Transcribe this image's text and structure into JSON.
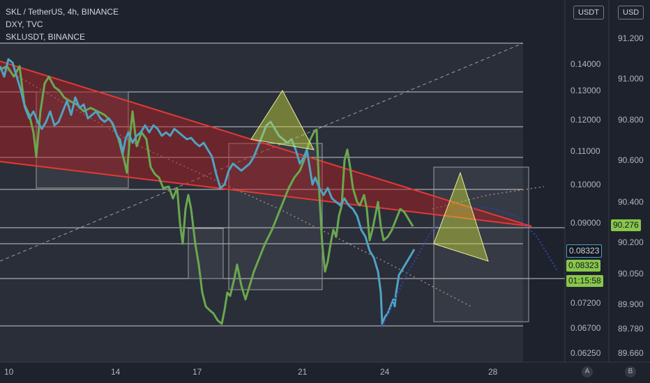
{
  "legend": {
    "line1": "SKL / TetherUS, 4h, BINANCE",
    "line2": "DXY, TVC",
    "line3": "SKLUSDT, BINANCE"
  },
  "currency_left": "USDT",
  "currency_right": "USD",
  "left_axis_ticks": [
    "0.14000",
    "0.13000",
    "0.12000",
    "0.11000",
    "0.10000",
    "0.09000",
    "0.07200",
    "0.06700",
    "0.06250"
  ],
  "right_axis_ticks": [
    "91.200",
    "91.000",
    "90.800",
    "90.600",
    "90.400",
    "90.200",
    "90.050",
    "89.900",
    "89.780",
    "89.660"
  ],
  "date_ticks": [
    "10",
    "14",
    "17",
    "21",
    "24",
    "28"
  ],
  "badges": {
    "right_price": "90.276",
    "left_price_1": "0.08323",
    "left_price_2": "0.08323",
    "countdown": "01:15:58"
  },
  "corner_buttons": {
    "auto": "A",
    "log": "B"
  },
  "colors": {
    "background": "#1e222d",
    "sklusdt_line": "#4fa3c4",
    "dxy_line": "#6aa84f",
    "trendline": "#e53935",
    "triangle": "#cddc39",
    "badge_green": "#89c64a",
    "badge_teal": "#26a69a"
  }
}
